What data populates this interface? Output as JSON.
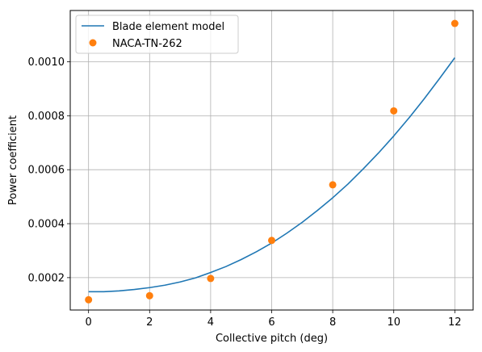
{
  "chart_data": {
    "type": "line",
    "title": "",
    "xlabel": "Collective pitch (deg)",
    "ylabel": "Power coefficient",
    "xlim": [
      -0.6,
      12.6
    ],
    "ylim": [
      8e-05,
      0.00119
    ],
    "xticks": [
      0,
      2,
      4,
      6,
      8,
      10,
      12
    ],
    "xtick_labels": [
      "0",
      "2",
      "4",
      "6",
      "8",
      "10",
      "12"
    ],
    "yticks": [
      0.0002,
      0.0004,
      0.0006,
      0.0008,
      0.001
    ],
    "ytick_labels": [
      "0.0002",
      "0.0004",
      "0.0006",
      "0.0008",
      "0.0010"
    ],
    "grid": true,
    "legend_position": "top-left",
    "series": [
      {
        "name": "Blade element model",
        "kind": "line",
        "color": "#1f77b4",
        "x": [
          0,
          0.5,
          1,
          1.5,
          2,
          2.5,
          3,
          3.5,
          4,
          4.5,
          5,
          5.5,
          6,
          6.5,
          7,
          7.5,
          8,
          8.5,
          9,
          9.5,
          10,
          10.5,
          11,
          11.5,
          12
        ],
        "y": [
          0.000148,
          0.000148,
          0.000151,
          0.000156,
          0.000163,
          0.000172,
          0.000184,
          0.000199,
          0.000219,
          0.000241,
          0.000267,
          0.000296,
          0.000328,
          0.000365,
          0.000405,
          0.000449,
          0.000496,
          0.000547,
          0.000603,
          0.000662,
          0.000725,
          0.000792,
          0.000863,
          0.000938,
          0.001015
        ]
      },
      {
        "name": "NACA-TN-262",
        "kind": "scatter",
        "color": "#ff7f0e",
        "x": [
          0,
          2,
          4,
          6,
          8,
          10,
          12
        ],
        "y": [
          0.000118,
          0.000133,
          0.000197,
          0.000338,
          0.000544,
          0.000818,
          0.001142
        ]
      }
    ]
  }
}
